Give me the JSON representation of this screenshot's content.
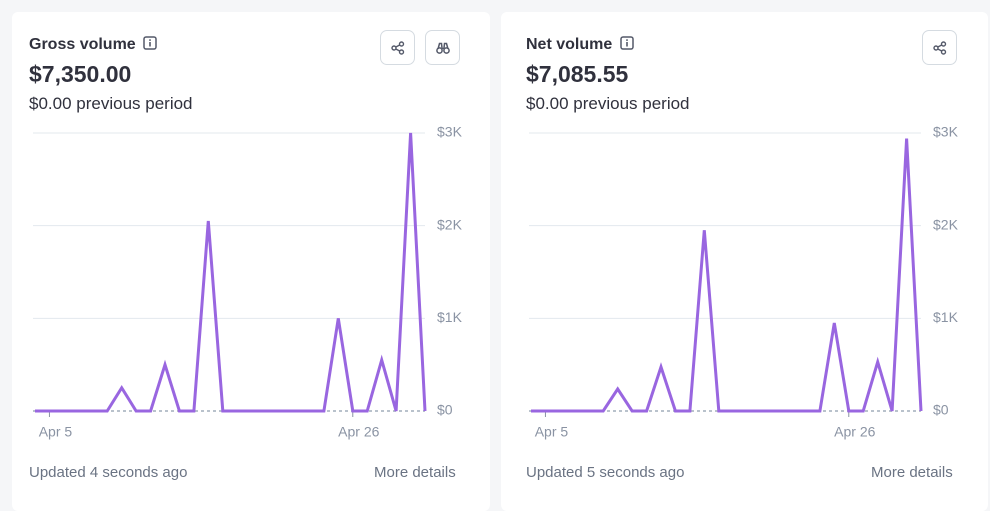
{
  "chart_data": [
    {
      "type": "line",
      "title": "Gross volume",
      "value": "$7,350.00",
      "subtitle": "$0.00 previous period",
      "footer": "Updated 4 seconds ago",
      "link": "More details",
      "categories": [
        null,
        "Apr 5",
        null,
        null,
        null,
        null,
        null,
        null,
        null,
        null,
        null,
        null,
        null,
        null,
        null,
        null,
        null,
        null,
        null,
        null,
        null,
        null,
        "Apr 26",
        null,
        null,
        null,
        null,
        null
      ],
      "values": [
        0,
        0,
        0,
        0,
        0,
        0,
        250,
        0,
        0,
        500,
        0,
        0,
        2050,
        0,
        0,
        0,
        0,
        0,
        0,
        0,
        0,
        1000,
        0,
        0,
        550,
        0,
        3000,
        0
      ],
      "color": "#9966e0",
      "ylim": [
        0,
        3000
      ],
      "yticks": [
        {
          "value": 0,
          "label": "$0"
        },
        {
          "value": 1000,
          "label": "$1K"
        },
        {
          "value": 2000,
          "label": "$2K"
        },
        {
          "value": 3000,
          "label": "$3K"
        }
      ],
      "grid": true
    },
    {
      "type": "line",
      "title": "Net volume",
      "value": "$7,085.55",
      "subtitle": "$0.00 previous period",
      "footer": "Updated 5 seconds ago",
      "link": "More details",
      "categories": [
        null,
        "Apr 5",
        null,
        null,
        null,
        null,
        null,
        null,
        null,
        null,
        null,
        null,
        null,
        null,
        null,
        null,
        null,
        null,
        null,
        null,
        null,
        null,
        "Apr 26",
        null,
        null,
        null,
        null,
        null
      ],
      "values": [
        0,
        0,
        0,
        0,
        0,
        0,
        237,
        0,
        0,
        475,
        0,
        0,
        1950,
        0,
        0,
        0,
        0,
        0,
        0,
        0,
        0,
        950,
        0,
        0,
        530,
        0,
        2940,
        0
      ],
      "color": "#9966e0",
      "ylim": [
        0,
        3000
      ],
      "yticks": [
        {
          "value": 0,
          "label": "$0"
        },
        {
          "value": 1000,
          "label": "$1K"
        },
        {
          "value": 2000,
          "label": "$2K"
        },
        {
          "value": 3000,
          "label": "$3K"
        }
      ],
      "grid": true
    }
  ]
}
